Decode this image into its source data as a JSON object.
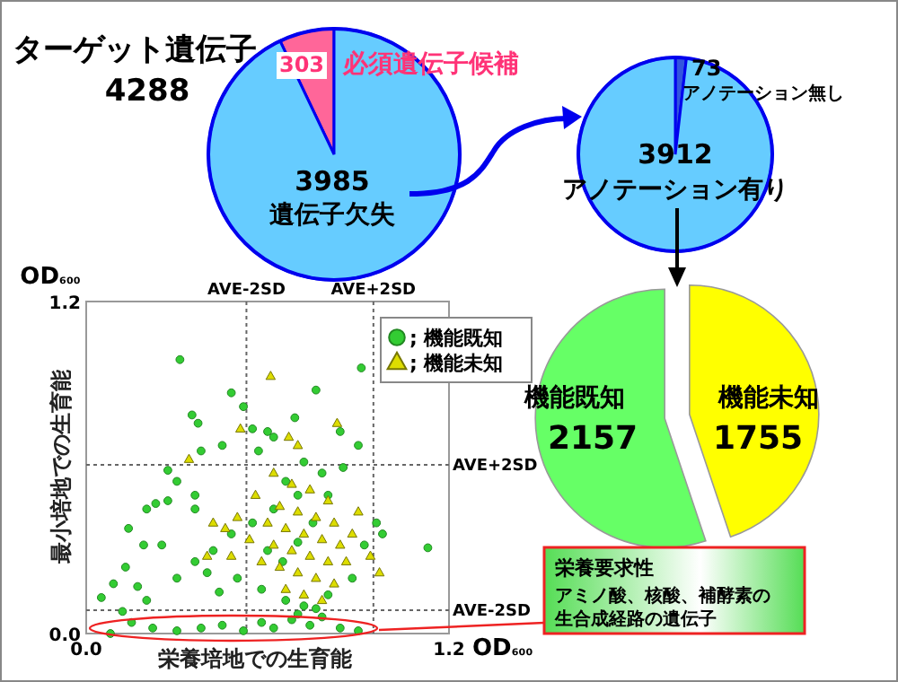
{
  "chart_data": [
    {
      "type": "pie",
      "title": "ターゲット遺伝子",
      "subtitle": "4288",
      "categories": [
        "必須遺伝子候補",
        "遺伝子欠失"
      ],
      "values": [
        303,
        3985
      ],
      "colors": [
        "#ff6699",
        "#66ccff"
      ],
      "data_labels": true
    },
    {
      "type": "pie",
      "categories": [
        "アノテーション無し",
        "アノテーション有り"
      ],
      "values": [
        73,
        3912
      ],
      "colors": [
        "#3355dd",
        "#66ccff"
      ],
      "data_labels": true
    },
    {
      "type": "pie",
      "categories": [
        "機能既知",
        "機能未知"
      ],
      "values": [
        2157,
        1755
      ],
      "colors": [
        "#66ff66",
        "#ffff00"
      ],
      "data_labels": true
    },
    {
      "type": "scatter",
      "xlabel": "栄養培地での生育能",
      "ylabel": "最小培地での生育能",
      "xlim": [
        0,
        1.2
      ],
      "ylim": [
        0,
        1.2
      ],
      "xticks": [
        {
          "value": 0,
          "label": "0.0"
        },
        {
          "value": 1.2,
          "label": "1.2"
        }
      ],
      "yticks": [
        {
          "value": 0,
          "label": "0.0"
        },
        {
          "value": 1.2,
          "label": "1.2"
        }
      ],
      "grid": false,
      "legend": "top right",
      "ref_lines": [
        {
          "axis": "x",
          "value": 0.53,
          "label": "AVE-2SD",
          "line_style": "dotted"
        },
        {
          "axis": "x",
          "value": 0.95,
          "label": "AVE+2SD",
          "line_style": "dotted"
        },
        {
          "axis": "y",
          "value": 0.61,
          "label": "AVE+2SD",
          "line_style": "dotted"
        },
        {
          "axis": "y",
          "value": 0.084,
          "label": "AVE-2SD",
          "line_style": "dotted"
        }
      ],
      "annotations": [
        "OD₆₀₀",
        "OD₆₀₀",
        "栄養要求性",
        "アミノ酸、核酸、補酵素の生合成経路の遺伝子"
      ],
      "series": [
        {
          "name": "; 機能既知",
          "color": "#33cc33",
          "marker": "circle",
          "x": [
            0.31,
            0.35,
            0.37,
            0.48,
            0.52,
            0.55,
            0.6,
            0.69,
            0.76,
            0.91,
            0.84,
            0.9,
            0.62,
            0.57,
            0.45,
            0.38,
            0.3,
            0.27,
            0.36,
            0.36,
            0.27,
            0.23,
            0.2,
            0.14,
            0.19,
            0.25,
            0.13,
            0.17,
            0.09,
            0.05,
            0.12,
            0.2,
            0.3,
            0.36,
            0.42,
            0.48,
            0.55,
            0.62,
            0.7,
            0.78,
            0.85,
            0.96,
            0.98,
            1.13,
            0.92,
            0.88,
            0.8,
            0.72,
            0.66,
            0.58,
            0.5,
            0.44,
            0.4,
            0.6,
            0.65,
            0.7,
            0.75,
            0.66,
            0.72,
            0.8,
            0.08,
            0.15,
            0.22,
            0.3,
            0.38,
            0.45,
            0.52,
            0.58,
            0.62,
            0.68,
            0.74,
            0.78,
            0.84,
            0.9,
            0.7,
            0.76
          ],
          "values": [
            0.99,
            0.79,
            0.76,
            0.87,
            0.82,
            0.74,
            0.73,
            0.78,
            0.88,
            0.96,
            0.73,
            0.68,
            0.71,
            0.66,
            0.68,
            0.66,
            0.55,
            0.59,
            0.5,
            0.45,
            0.48,
            0.47,
            0.45,
            0.38,
            0.32,
            0.32,
            0.24,
            0.17,
            0.18,
            0.13,
            0.08,
            0.12,
            0.2,
            0.26,
            0.3,
            0.36,
            0.4,
            0.45,
            0.5,
            0.58,
            0.6,
            0.4,
            0.36,
            0.31,
            0.32,
            0.2,
            0.14,
            0.1,
            0.12,
            0.16,
            0.2,
            0.15,
            0.22,
            0.3,
            0.26,
            0.33,
            0.4,
            0.55,
            0.62,
            0.5,
            0.0,
            0.04,
            0.02,
            0.01,
            0.02,
            0.03,
            0.01,
            0.04,
            0.02,
            0.05,
            0.03,
            0.06,
            0.02,
            0.01,
            0.07,
            0.09
          ]
        },
        {
          "name": "; 機能未知",
          "color": "#dddd00",
          "marker": "triangle",
          "x": [
            0.61,
            0.51,
            0.67,
            0.83,
            0.34,
            0.7,
            0.62,
            0.68,
            0.74,
            0.8,
            0.64,
            0.7,
            0.76,
            0.82,
            0.6,
            0.66,
            0.72,
            0.78,
            0.84,
            0.62,
            0.68,
            0.74,
            0.8,
            0.86,
            0.64,
            0.7,
            0.76,
            0.82,
            0.66,
            0.72,
            0.78,
            0.58,
            0.54,
            0.5,
            0.46,
            0.42,
            0.48,
            0.9,
            0.94,
            0.97,
            0.88,
            0.56,
            0.4
          ],
          "values": [
            0.93,
            0.74,
            0.71,
            0.76,
            0.63,
            0.68,
            0.58,
            0.54,
            0.52,
            0.48,
            0.46,
            0.44,
            0.42,
            0.4,
            0.4,
            0.38,
            0.36,
            0.34,
            0.32,
            0.32,
            0.3,
            0.28,
            0.26,
            0.26,
            0.24,
            0.22,
            0.2,
            0.18,
            0.16,
            0.14,
            0.12,
            0.26,
            0.34,
            0.42,
            0.38,
            0.4,
            0.28,
            0.44,
            0.28,
            0.22,
            0.36,
            0.5,
            0.28
          ]
        }
      ]
    }
  ]
}
